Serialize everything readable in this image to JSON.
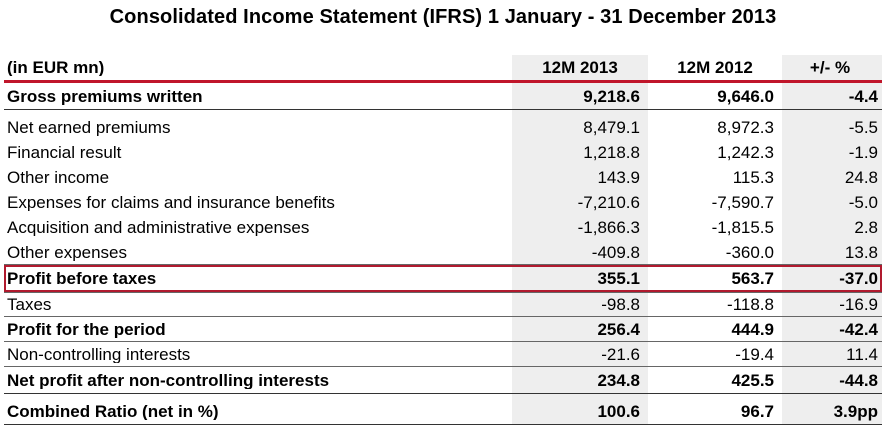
{
  "title": "Consolidated Income Statement (IFRS) 1 January - 31 December 2013",
  "headers": [
    "(in EUR mn)",
    "12M 2013",
    "12M 2012",
    "+/- %"
  ],
  "rows": [
    {
      "label": "Gross premiums written",
      "v2013": "9,218.6",
      "v2012": "9,646.0",
      "change": "-4.4",
      "bold": true
    },
    {
      "label": "Net earned premiums",
      "v2013": "8,479.1",
      "v2012": "8,972.3",
      "change": "-5.5",
      "bold": false
    },
    {
      "label": "Financial result",
      "v2013": "1,218.8",
      "v2012": "1,242.3",
      "change": "-1.9",
      "bold": false
    },
    {
      "label": "Other income",
      "v2013": "143.9",
      "v2012": "115.3",
      "change": "24.8",
      "bold": false
    },
    {
      "label": "Expenses for claims and insurance benefits",
      "v2013": "-7,210.6",
      "v2012": "-7,590.7",
      "change": "-5.0",
      "bold": false
    },
    {
      "label": "Acquisition and administrative expenses",
      "v2013": "-1,866.3",
      "v2012": "-1,815.5",
      "change": "2.8",
      "bold": false
    },
    {
      "label": "Other expenses",
      "v2013": "-409.8",
      "v2012": "-360.0",
      "change": "13.8",
      "bold": false
    },
    {
      "label": "Profit before taxes",
      "v2013": "355.1",
      "v2012": "563.7",
      "change": "-37.0",
      "bold": true,
      "highlighted": true
    },
    {
      "label": "Taxes",
      "v2013": "-98.8",
      "v2012": "-118.8",
      "change": "-16.9",
      "bold": false
    },
    {
      "label": "Profit for the period",
      "v2013": "256.4",
      "v2012": "444.9",
      "change": "-42.4",
      "bold": true
    },
    {
      "label": "Non-controlling interests",
      "v2013": "-21.6",
      "v2012": "-19.4",
      "change": "11.4",
      "bold": false
    },
    {
      "label": "Net profit after non-controlling interests",
      "v2013": "234.8",
      "v2012": "425.5",
      "change": "-44.8",
      "bold": true
    },
    {
      "label": "Combined Ratio (net in %)",
      "v2013": "100.6",
      "v2012": "96.7",
      "change": "3.9pp",
      "bold": true
    }
  ],
  "colors": {
    "accent_red": "#c0162b",
    "shade": "#eeeeee"
  }
}
